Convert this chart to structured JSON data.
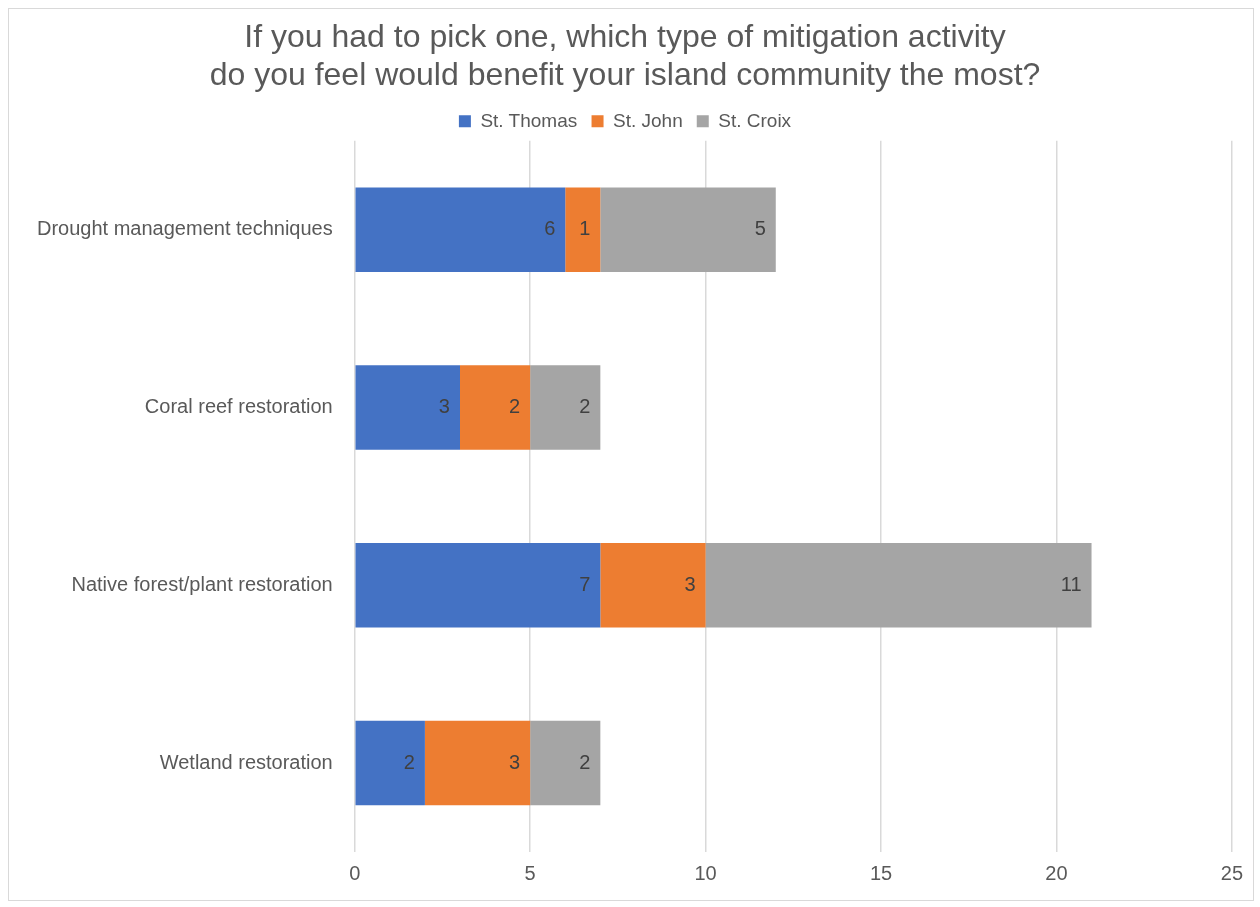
{
  "chart_data": {
    "type": "bar",
    "orientation": "horizontal",
    "stacked": true,
    "title": "If you had to pick one, which type of mitigation activity do you feel would benefit your island community the most?",
    "categories": [
      "Drought management techniques",
      "Coral reef restoration",
      "Native forest/plant restoration",
      "Wetland restoration"
    ],
    "series": [
      {
        "name": "St. Thomas",
        "color": "#4472c4",
        "values": [
          6,
          3,
          7,
          2
        ]
      },
      {
        "name": "St. John",
        "color": "#ed7d31",
        "values": [
          1,
          2,
          3,
          3
        ]
      },
      {
        "name": "St. Croix",
        "color": "#a5a5a5",
        "values": [
          5,
          2,
          11,
          2
        ]
      }
    ],
    "xlim": [
      0,
      25
    ],
    "xticks": [
      0,
      5,
      10,
      15,
      20,
      25
    ],
    "grid": "x",
    "legend": "top",
    "data_labels": true
  }
}
